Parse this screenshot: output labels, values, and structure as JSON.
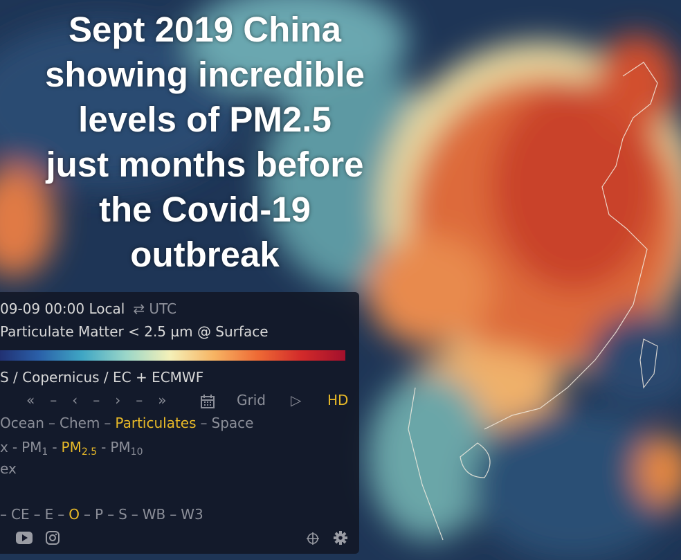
{
  "title_lines": [
    "Sept 2019 China",
    "showing incredible",
    "levels of PM2.5",
    "just months before",
    "the Covid-19",
    "outbreak"
  ],
  "panel": {
    "time": "09-09 00:00 Local",
    "time_toggle": "⇄ UTC",
    "overlay": "Particulate Matter < 2.5 µm @ Surface",
    "source": "S / Copernicus / EC + ECMWF",
    "nav": [
      "«",
      "–",
      "‹",
      "–",
      "›",
      "–",
      "»"
    ],
    "grid": "Grid",
    "play": "▷",
    "hd": "HD",
    "modes": {
      "items": [
        "Ocean",
        "–",
        "Chem",
        "–",
        "Particulates",
        "–",
        "Space"
      ],
      "selected_index": 4
    },
    "particles": {
      "items": [
        {
          "base": "x"
        },
        {
          "base": "-"
        },
        {
          "base": "PM",
          "sub": "1"
        },
        {
          "base": "-"
        },
        {
          "base": "PM",
          "sub": "2.5"
        },
        {
          "base": "-"
        },
        {
          "base": "PM",
          "sub": "10"
        }
      ],
      "selected_index": 4
    },
    "animate": "ex",
    "projections": {
      "items": [
        "–",
        "CE",
        "–",
        "E",
        "–",
        "O",
        "–",
        "P",
        "–",
        "S",
        "–",
        "WB",
        "–",
        "W3"
      ],
      "selected_index": 5
    }
  }
}
